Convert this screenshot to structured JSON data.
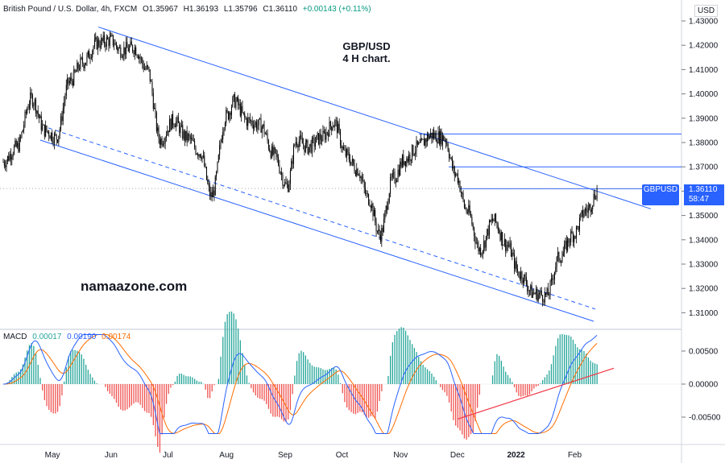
{
  "header": {
    "instrument": "British Pound / U.S. Dollar, 4h, FXCM",
    "open": "O1.35967",
    "high": "H1.36193",
    "low": "L1.35796",
    "close": "C1.36110",
    "change": "+0.00143 (+0.11%)"
  },
  "annotation": {
    "title_line1": "GBP/USD",
    "title_line2": "4 H chart.",
    "watermark": "namaazone.com"
  },
  "price_axis": {
    "currency": "USD"
  },
  "badge": {
    "pair": "GBPUSD",
    "price": "1.36110",
    "countdown": "58:47"
  },
  "macd_header": {
    "name": "MACD",
    "hist": "0.00017",
    "macd": "0.00190",
    "signal": "0.00174"
  },
  "colors": {
    "candle": "#000000",
    "trend_line": "#2962ff",
    "macd_line": "#2962ff",
    "signal_line": "#ff6d00",
    "hist_pos": "#26a69a",
    "hist_neg": "#ef5350",
    "macd_trend": "#f23645"
  },
  "chart_data": [
    {
      "type": "candlestick",
      "x_ticks": [
        "May",
        "Jun",
        "Jul",
        "Aug",
        "Sep",
        "Oct",
        "Nov",
        "Dec",
        "2022",
        "Feb"
      ],
      "y_ticks": [
        "1.43000",
        "1.42000",
        "1.41000",
        "1.40000",
        "1.39000",
        "1.38000",
        "1.37000",
        "1.36000",
        "1.35000",
        "1.34000",
        "1.33000",
        "1.32000",
        "1.31000"
      ],
      "ylim": [
        1.305,
        1.432
      ],
      "last_price": 1.3611,
      "path_knots": [
        [
          "2021-04-05",
          1.372
        ],
        [
          "2021-04-12",
          1.378
        ],
        [
          "2021-04-20",
          1.398
        ],
        [
          "2021-04-27",
          1.385
        ],
        [
          "2021-05-03",
          1.382
        ],
        [
          "2021-05-10",
          1.405
        ],
        [
          "2021-05-17",
          1.413
        ],
        [
          "2021-05-25",
          1.421
        ],
        [
          "2021-06-01",
          1.422
        ],
        [
          "2021-06-06",
          1.418
        ],
        [
          "2021-06-13",
          1.419
        ],
        [
          "2021-06-20",
          1.41
        ],
        [
          "2021-06-27",
          1.381
        ],
        [
          "2021-07-04",
          1.389
        ],
        [
          "2021-07-11",
          1.382
        ],
        [
          "2021-07-18",
          1.376
        ],
        [
          "2021-07-24",
          1.358
        ],
        [
          "2021-08-01",
          1.391
        ],
        [
          "2021-08-05",
          1.397
        ],
        [
          "2021-08-12",
          1.389
        ],
        [
          "2021-08-19",
          1.387
        ],
        [
          "2021-08-26",
          1.375
        ],
        [
          "2021-09-02",
          1.362
        ],
        [
          "2021-09-07",
          1.381
        ],
        [
          "2021-09-13",
          1.378
        ],
        [
          "2021-09-20",
          1.382
        ],
        [
          "2021-09-27",
          1.388
        ],
        [
          "2021-10-03",
          1.375
        ],
        [
          "2021-10-09",
          1.369
        ],
        [
          "2021-10-15",
          1.357
        ],
        [
          "2021-10-21",
          1.342
        ],
        [
          "2021-10-28",
          1.365
        ],
        [
          "2021-11-03",
          1.373
        ],
        [
          "2021-11-10",
          1.378
        ],
        [
          "2021-11-17",
          1.383
        ],
        [
          "2021-11-24",
          1.382
        ],
        [
          "2021-11-30",
          1.367
        ],
        [
          "2021-12-06",
          1.352
        ],
        [
          "2021-12-13",
          1.336
        ],
        [
          "2021-12-20",
          1.348
        ],
        [
          "2021-12-27",
          1.338
        ],
        [
          "2022-01-03",
          1.326
        ],
        [
          "2022-01-10",
          1.318
        ],
        [
          "2022-01-17",
          1.317
        ],
        [
          "2022-01-24",
          1.333
        ],
        [
          "2022-01-31",
          1.342
        ],
        [
          "2022-02-07",
          1.352
        ],
        [
          "2022-02-14",
          1.361
        ]
      ],
      "horizontal_levels": [
        1.3835,
        1.37,
        1.361
      ]
    },
    {
      "type": "line",
      "title": "MACD",
      "y_ticks": [
        "0.00500",
        "0.00000",
        "-0.00500"
      ],
      "ylim": [
        -0.0078,
        0.0078
      ],
      "series": [
        {
          "name": "MACD",
          "color": "#2962ff"
        },
        {
          "name": "Signal",
          "color": "#ff6d00"
        },
        {
          "name": "Histogram",
          "color": "#26a69a"
        }
      ]
    }
  ]
}
